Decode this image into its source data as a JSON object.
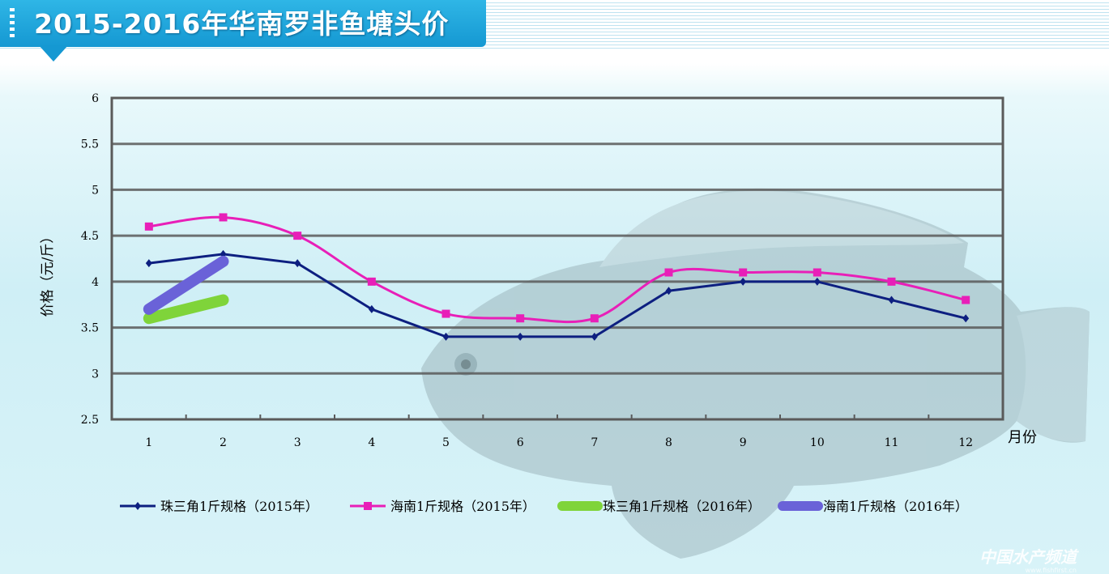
{
  "header": {
    "title": "2015-2016年华南罗非鱼塘头价"
  },
  "watermark": {
    "text": "中国水产频道",
    "sub": "www.fishfirst.cn"
  },
  "chart_data": {
    "type": "line",
    "title": "2015-2016年华南罗非鱼塘头价",
    "xlabel": "月份",
    "ylabel": "价格（元/斤）",
    "categories": [
      "1",
      "2",
      "3",
      "4",
      "5",
      "6",
      "7",
      "8",
      "9",
      "10",
      "11",
      "12"
    ],
    "ylim": [
      2.5,
      6
    ],
    "yticks": [
      "2.5",
      "3",
      "3.5",
      "4",
      "4.5",
      "5",
      "5.5",
      "6"
    ],
    "grid": true,
    "legend_position": "bottom",
    "series": [
      {
        "name": "珠三角1斤规格（2015年）",
        "color": "#0d1f80",
        "marker": "diamond",
        "style": "thin",
        "values": [
          4.2,
          4.3,
          4.2,
          3.7,
          3.4,
          3.4,
          3.4,
          3.9,
          4.0,
          4.0,
          3.8,
          3.6
        ]
      },
      {
        "name": "海南1斤规格（2015年）",
        "color": "#e81fb8",
        "marker": "square",
        "style": "smooth",
        "values": [
          4.6,
          4.7,
          4.5,
          4.0,
          3.65,
          3.6,
          3.6,
          4.1,
          4.1,
          4.1,
          4.0,
          3.8
        ]
      },
      {
        "name": "珠三角1斤规格（2016年）",
        "color": "#7fd43a",
        "marker": "none",
        "style": "thick",
        "values": [
          3.6,
          3.8,
          null,
          null,
          null,
          null,
          null,
          null,
          null,
          null,
          null,
          null
        ]
      },
      {
        "name": "海南1斤规格（2016年）",
        "color": "#6a62d8",
        "marker": "none",
        "style": "thick",
        "values": [
          3.7,
          4.22,
          null,
          null,
          null,
          null,
          null,
          null,
          null,
          null,
          null,
          null
        ]
      }
    ]
  }
}
